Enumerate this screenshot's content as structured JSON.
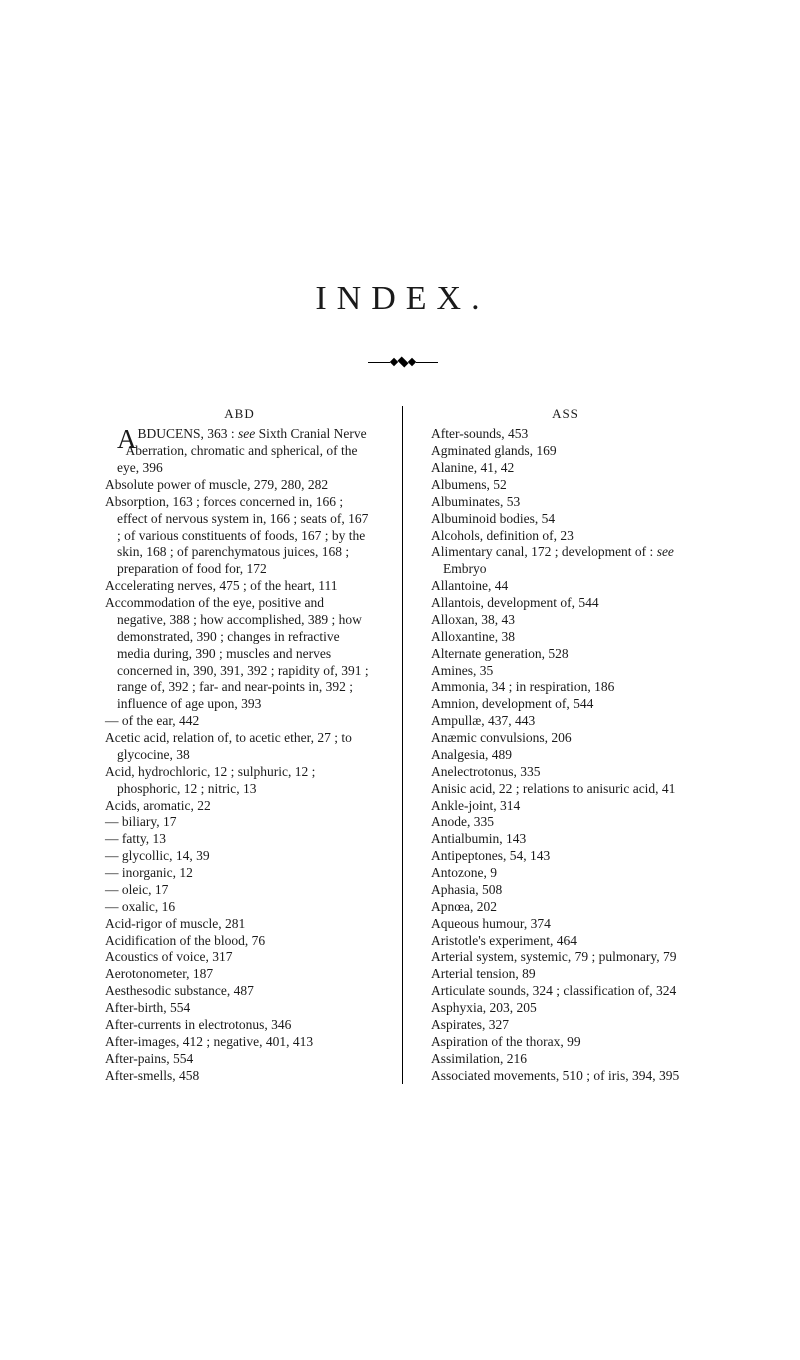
{
  "title": "INDEX.",
  "col_left_header": "ABD",
  "col_right_header": "ASS",
  "left_entries": [
    "BDUCENS, 363 : see Sixth Cranial Nerve",
    "Aberration, chromatic and spherical, of the eye, 396",
    "Absolute power of muscle, 279, 280, 282",
    "Absorption, 163 ; forces concerned in, 166 ; effect of nervous system in, 166 ; seats of, 167 ; of various constituents of foods, 167 ; by the skin, 168 ; of parenchymatous juices, 168 ; preparation of food for, 172",
    "Accelerating nerves, 475 ; of the heart, 111",
    "Accommodation of the eye, positive and negative, 388 ; how accomplished, 389 ; how demonstrated, 390 ; changes in refractive media during, 390 ; muscles and nerves concerned in, 390, 391, 392 ; rapidity of, 391 ; range of, 392 ; far- and near-points in, 392 ; influence of age upon, 393",
    "— of the ear, 442",
    "Acetic acid, relation of, to acetic ether, 27 ; to glycocine, 38",
    "Acid, hydrochloric, 12 ; sulphuric, 12 ; phosphoric, 12 ; nitric, 13",
    "Acids, aromatic, 22",
    "— biliary, 17",
    "— fatty, 13",
    "— glycollic, 14, 39",
    "— inorganic, 12",
    "— oleic, 17",
    "— oxalic, 16",
    "Acid-rigor of muscle, 281",
    "Acidification of the blood, 76",
    "Acoustics of voice, 317",
    "Aerotonometer, 187",
    "Aesthesodic substance, 487",
    "After-birth, 554",
    "After-currents in electrotonus, 346",
    "After-images, 412 ; negative, 401, 413",
    "After-pains, 554",
    "After-smells, 458"
  ],
  "right_entries": [
    "After-sounds, 453",
    "Agminated glands, 169",
    "Alanine, 41, 42",
    "Albumens, 52",
    "Albuminates, 53",
    "Albuminoid bodies, 54",
    "Alcohols, definition of, 23",
    "Alimentary canal, 172 ; development of : see Embryo",
    "Allantoine, 44",
    "Allantois, development of, 544",
    "Alloxan, 38, 43",
    "Alloxantine, 38",
    "Alternate generation, 528",
    "Amines, 35",
    "Ammonia, 34 ; in respiration, 186",
    "Amnion, development of, 544",
    "Ampullæ, 437, 443",
    "Anæmic convulsions, 206",
    "Analgesia, 489",
    "Anelectrotonus, 335",
    "Anisic acid, 22 ; relations to anisuric acid, 41",
    "Ankle-joint, 314",
    "Anode, 335",
    "Antialbumin, 143",
    "Antipeptones, 54, 143",
    "Antozone, 9",
    "Aphasia, 508",
    "Apnœa, 202",
    "Aqueous humour, 374",
    "Aristotle's experiment, 464",
    "Arterial system, systemic, 79 ; pulmonary, 79",
    "Arterial tension, 89",
    "Articulate sounds, 324 ; classification of, 324",
    "Asphyxia, 203, 205",
    "Aspirates, 327",
    "Aspiration of the thorax, 99",
    "Assimilation, 216",
    "Associated movements, 510 ; of iris, 394, 395"
  ],
  "style": {
    "font_family": "Times New Roman",
    "body_font_size": 13.5,
    "title_font_size": 34,
    "title_letter_spacing": 10,
    "text_color": "#1a1a1a",
    "background_color": "#ffffff",
    "line_height": 1.25,
    "column_gap": 28,
    "rule_color": "#000000"
  }
}
